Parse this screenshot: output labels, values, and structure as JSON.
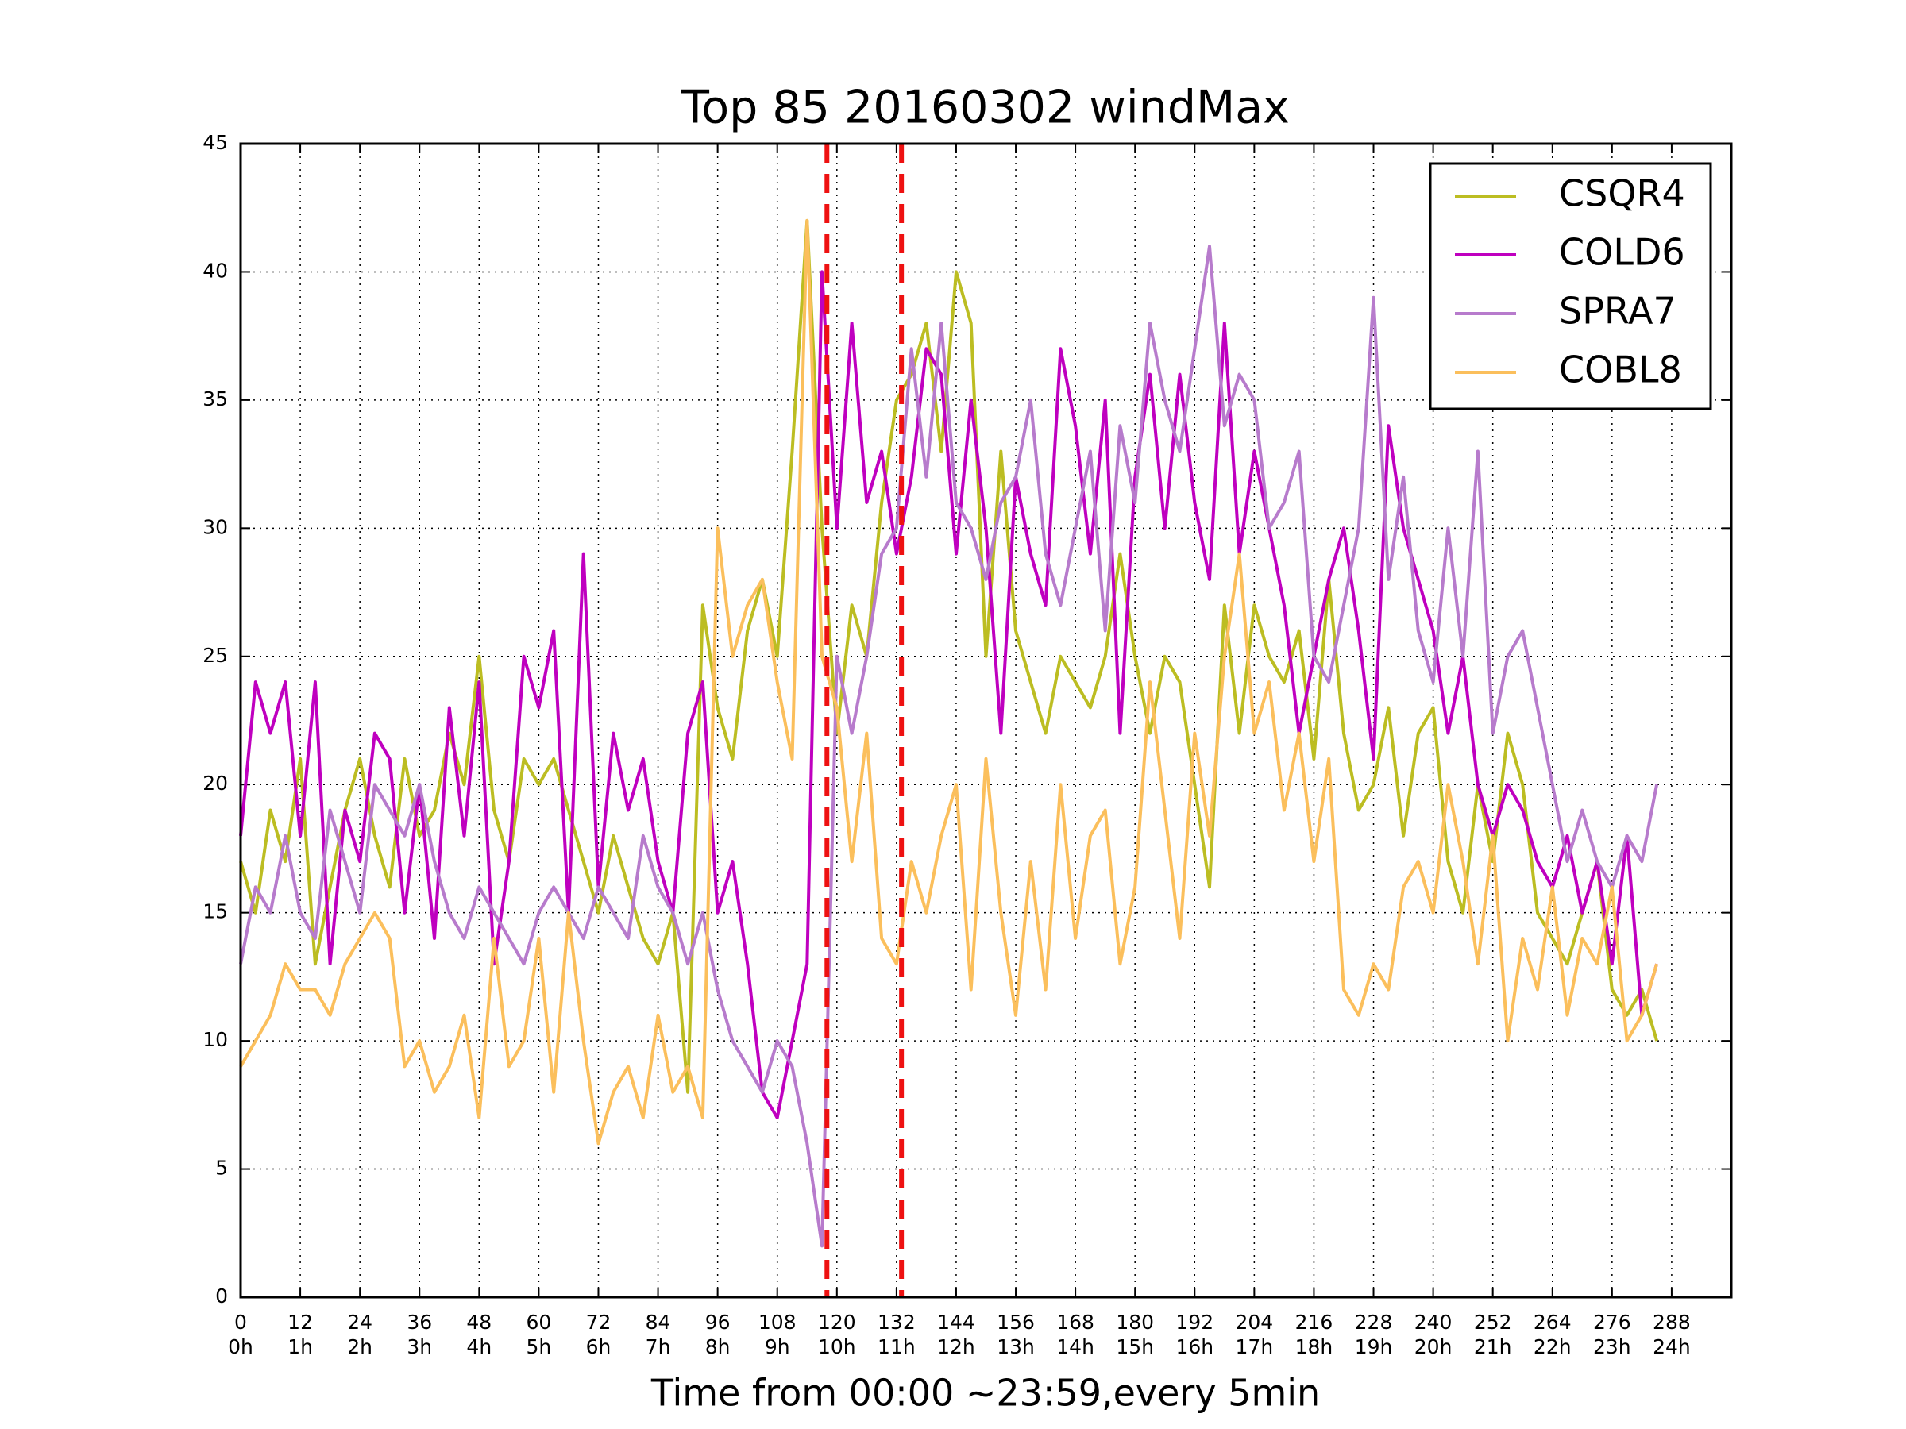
{
  "chart_data": {
    "type": "line",
    "title": "Top 85 20160302 windMax",
    "x_label": "Time from 00:00 ~23:59,every 5min",
    "x": [
      0,
      3,
      6,
      9,
      12,
      15,
      18,
      21,
      24,
      27,
      30,
      33,
      36,
      39,
      42,
      45,
      48,
      51,
      54,
      57,
      60,
      63,
      66,
      69,
      72,
      75,
      78,
      81,
      84,
      87,
      90,
      93,
      96,
      99,
      102,
      105,
      108,
      111,
      114,
      117,
      120,
      123,
      126,
      129,
      132,
      135,
      138,
      141,
      144,
      147,
      150,
      153,
      156,
      159,
      162,
      165,
      168,
      171,
      174,
      177,
      180,
      183,
      186,
      189,
      192,
      195,
      198,
      201,
      204,
      207,
      210,
      213,
      216,
      219,
      222,
      225,
      228,
      231,
      234,
      237,
      240,
      243,
      246,
      249,
      252,
      255,
      258,
      261,
      264,
      267,
      270,
      273,
      276,
      279,
      282,
      285
    ],
    "series": [
      {
        "name": "CSQR4",
        "color": "#bcbd22",
        "values": [
          17,
          15,
          19,
          17,
          21,
          13,
          16,
          19,
          21,
          18,
          16,
          21,
          18,
          19,
          22,
          20,
          25,
          19,
          17,
          21,
          20,
          21,
          19,
          17,
          15,
          18,
          16,
          14,
          13,
          15,
          8,
          27,
          23,
          21,
          26,
          28,
          25,
          33,
          42,
          30,
          22,
          27,
          25,
          31,
          35,
          36,
          38,
          33,
          40,
          38,
          25,
          33,
          26,
          24,
          22,
          25,
          24,
          23,
          25,
          29,
          25,
          22,
          25,
          24,
          20,
          16,
          27,
          22,
          27,
          25,
          24,
          26,
          21,
          28,
          22,
          19,
          20,
          23,
          18,
          22,
          23,
          17,
          15,
          20,
          17,
          22,
          20,
          15,
          14,
          13,
          15,
          17,
          12,
          11,
          12,
          10
        ]
      },
      {
        "name": "COLD6",
        "color": "#bf00bf",
        "values": [
          18,
          24,
          22,
          24,
          18,
          24,
          13,
          19,
          17,
          22,
          21,
          15,
          20,
          14,
          23,
          18,
          24,
          13,
          17,
          25,
          23,
          26,
          15,
          29,
          16,
          22,
          19,
          21,
          17,
          15,
          22,
          24,
          15,
          17,
          13,
          8,
          7,
          10,
          13,
          40,
          30,
          38,
          31,
          33,
          29,
          32,
          37,
          36,
          29,
          35,
          30,
          22,
          32,
          29,
          27,
          37,
          34,
          29,
          35,
          22,
          32,
          36,
          30,
          36,
          31,
          28,
          38,
          29,
          33,
          30,
          27,
          22,
          25,
          28,
          30,
          26,
          21,
          34,
          30,
          28,
          26,
          22,
          25,
          20,
          18,
          20,
          19,
          17,
          16,
          18,
          15,
          17,
          13,
          18,
          11,
          13
        ]
      },
      {
        "name": "SPRA7",
        "color": "#b77bcc",
        "values": [
          13,
          16,
          15,
          18,
          15,
          14,
          19,
          17,
          15,
          20,
          19,
          18,
          20,
          17,
          15,
          14,
          16,
          15,
          14,
          13,
          15,
          16,
          15,
          14,
          16,
          15,
          14,
          18,
          16,
          15,
          13,
          15,
          12,
          10,
          9,
          8,
          10,
          9,
          6,
          2,
          25,
          22,
          25,
          29,
          30,
          37,
          32,
          38,
          31,
          30,
          28,
          31,
          32,
          35,
          29,
          27,
          30,
          33,
          26,
          34,
          31,
          38,
          35,
          33,
          37,
          41,
          34,
          36,
          35,
          30,
          31,
          33,
          25,
          24,
          27,
          30,
          39,
          28,
          32,
          26,
          24,
          30,
          25,
          33,
          22,
          25,
          26,
          23,
          20,
          17,
          19,
          17,
          16,
          18,
          17,
          20
        ]
      },
      {
        "name": "COBL8",
        "color": "#fbbf5c",
        "values": [
          9,
          10,
          11,
          13,
          12,
          12,
          11,
          13,
          14,
          15,
          14,
          9,
          10,
          8,
          9,
          11,
          7,
          14,
          9,
          10,
          14,
          8,
          15,
          10,
          6,
          8,
          9,
          7,
          11,
          8,
          9,
          7,
          30,
          25,
          27,
          28,
          24,
          21,
          42,
          25,
          23,
          17,
          22,
          14,
          13,
          17,
          15,
          18,
          20,
          12,
          21,
          15,
          11,
          17,
          12,
          20,
          14,
          18,
          19,
          13,
          16,
          24,
          19,
          14,
          22,
          18,
          25,
          29,
          22,
          24,
          19,
          22,
          17,
          21,
          12,
          11,
          13,
          12,
          16,
          17,
          15,
          20,
          17,
          13,
          18,
          10,
          14,
          12,
          16,
          11,
          14,
          13,
          16,
          10,
          11,
          13
        ]
      }
    ],
    "xlim": [
      0,
      300
    ],
    "ylim": [
      0,
      45
    ],
    "xticks": [
      0,
      12,
      24,
      36,
      48,
      60,
      72,
      84,
      96,
      108,
      120,
      132,
      144,
      156,
      168,
      180,
      192,
      204,
      216,
      228,
      240,
      252,
      264,
      276,
      288
    ],
    "xtick_sublabels": [
      "0h",
      "1h",
      "2h",
      "3h",
      "4h",
      "5h",
      "6h",
      "7h",
      "8h",
      "9h",
      "10h",
      "11h",
      "12h",
      "13h",
      "14h",
      "15h",
      "16h",
      "17h",
      "18h",
      "19h",
      "20h",
      "21h",
      "22h",
      "23h",
      "24h"
    ],
    "yticks": [
      0,
      5,
      10,
      15,
      20,
      25,
      30,
      35,
      40,
      45
    ],
    "vlines": [
      118,
      133
    ],
    "vline_color": "#ee1111",
    "grid": true,
    "legend": "upper right"
  }
}
